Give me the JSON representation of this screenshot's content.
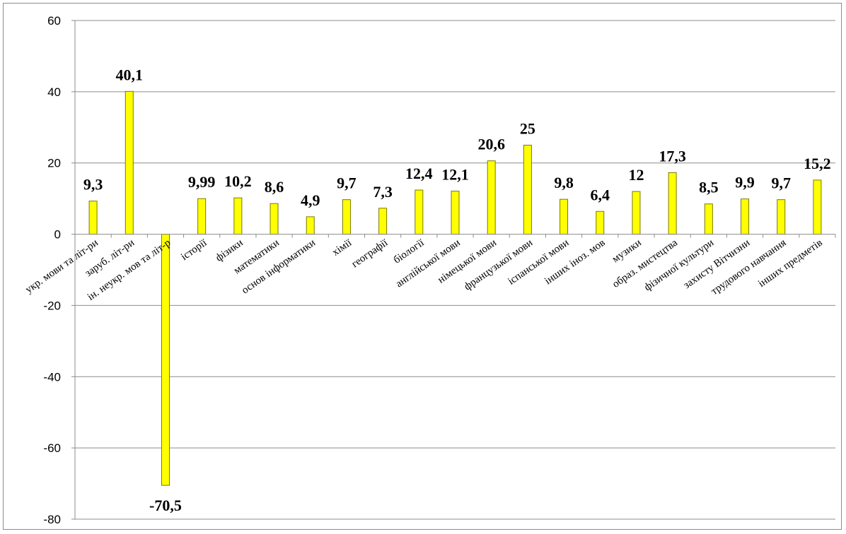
{
  "chart_data": {
    "type": "bar",
    "title": "",
    "xlabel": "",
    "ylabel": "",
    "ylim": [
      -80,
      60
    ],
    "yticks": [
      60,
      40,
      20,
      0,
      -20,
      -40,
      -60,
      -80
    ],
    "grid": true,
    "legend": "none",
    "bar_color": "#ffff00",
    "bar_edge_color": "#7a7a00",
    "categories": [
      "укр. мови та літ-ри",
      "заруб. літ-ри",
      "ін. неукр. мов та літ-р",
      "історії",
      "фізики",
      "математики",
      "основ інформатики",
      "хімії",
      "географії",
      "біології",
      "англійської мови",
      "німецької мови",
      "французької мови",
      "іспанської мови",
      "інших іноз. мов",
      "музики",
      "образ. мистецтва",
      "фізичної культури",
      "захисту Вітчизни",
      "трудового навчання",
      "інших предметів"
    ],
    "values": [
      9.3,
      40.1,
      -70.5,
      9.99,
      10.2,
      8.6,
      4.9,
      9.7,
      7.3,
      12.4,
      12.1,
      20.6,
      25,
      9.8,
      6.4,
      12,
      17.3,
      8.5,
      9.9,
      9.7,
      15.2
    ],
    "data_labels": [
      "9,3",
      "40,1",
      "-70,5",
      "9,99",
      "10,2",
      "8,6",
      "4,9",
      "9,7",
      "7,3",
      "12,4",
      "12,1",
      "20,6",
      "25",
      "9,8",
      "6,4",
      "12",
      "17,3",
      "8,5",
      "9,9",
      "9,7",
      "15,2"
    ]
  }
}
